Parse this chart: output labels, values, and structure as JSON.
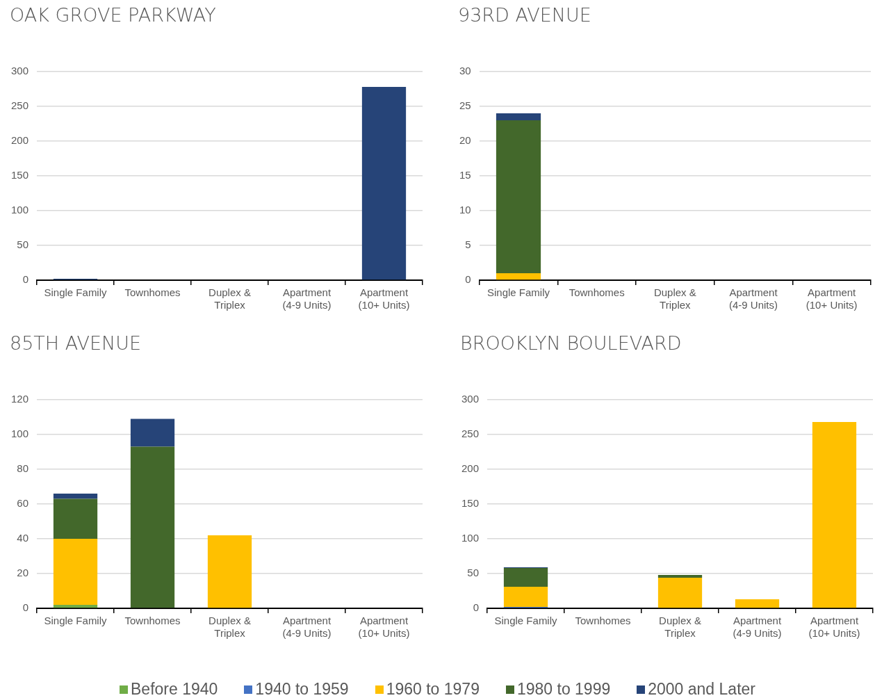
{
  "chart_data": [
    {
      "type": "bar",
      "title": "OAK GROVE PARKWAY",
      "stacked": true,
      "grid": "y",
      "legend": "bottom",
      "categories": [
        "Single Family",
        "Townhomes",
        "Duplex & Triplex",
        "Apartment (4-9 Units)",
        "Apartment (10+ Units)"
      ],
      "ylim": [
        0,
        300
      ],
      "yticks": [
        0,
        50,
        100,
        150,
        200,
        250,
        300
      ],
      "series": [
        {
          "name": "Before 1940",
          "color": "#70ad47",
          "values": [
            0,
            0,
            0,
            0,
            0
          ]
        },
        {
          "name": "1940 to 1959",
          "color": "#4472c4",
          "values": [
            0,
            0,
            0,
            0,
            0
          ]
        },
        {
          "name": "1960 to 1979",
          "color": "#ffc000",
          "values": [
            0,
            0,
            0,
            0,
            0
          ]
        },
        {
          "name": "1980 to 1999",
          "color": "#43682b",
          "values": [
            null,
            0,
            0,
            0,
            0
          ]
        },
        {
          "name": "2000 and Later",
          "color": "#264478",
          "values": [
            2,
            0,
            0,
            0,
            278
          ]
        }
      ]
    },
    {
      "type": "bar",
      "title": "93RD AVENUE",
      "stacked": true,
      "grid": "y",
      "categories": [
        "Single Family",
        "Townhomes",
        "Duplex & Triplex",
        "Apartment (4-9 Units)",
        "Apartment (10+ Units)"
      ],
      "ylim": [
        0,
        30
      ],
      "yticks": [
        0,
        5,
        10,
        15,
        20,
        25,
        30
      ],
      "series": [
        {
          "color": "#70ad47",
          "values": [
            0,
            0,
            0,
            0,
            0
          ]
        },
        {
          "color": "#4472c4",
          "values": [
            0,
            0,
            0,
            0,
            0
          ]
        },
        {
          "color": "#ffc000",
          "values": [
            1,
            0,
            0,
            0,
            0
          ]
        },
        {
          "color": "#43682b",
          "values": [
            22,
            0,
            0,
            0,
            0
          ]
        },
        {
          "color": "#264478",
          "values": [
            1,
            0,
            0,
            0,
            0
          ]
        }
      ]
    },
    {
      "type": "bar",
      "title": "85TH AVENUE",
      "stacked": true,
      "grid": "y",
      "categories": [
        "Single Family",
        "Townhomes",
        "Duplex & Triplex",
        "Apartment (4-9 Units)",
        "Apartment (10+ Units)"
      ],
      "ylim": [
        0,
        120
      ],
      "yticks": [
        0,
        20,
        40,
        60,
        80,
        100,
        120
      ],
      "series": [
        {
          "color": "#70ad47",
          "values": [
            2,
            0,
            0,
            0,
            0
          ]
        },
        {
          "color": "#4472c4",
          "values": [
            0,
            0,
            0,
            0,
            0
          ]
        },
        {
          "color": "#ffc000",
          "values": [
            38,
            0,
            42,
            0,
            0
          ]
        },
        {
          "color": "#43682b",
          "values": [
            23,
            93,
            0,
            0,
            0
          ]
        },
        {
          "color": "#264478",
          "values": [
            3,
            16,
            0,
            0,
            0
          ]
        }
      ]
    },
    {
      "type": "bar",
      "title": "BROOKLYN BOULEVARD",
      "stacked": true,
      "grid": "y",
      "categories": [
        "Single Family",
        "Townhomes",
        "Duplex & Triplex",
        "Apartment (4-9 Units)",
        "Apartment (10+ Units)"
      ],
      "ylim": [
        0,
        300
      ],
      "yticks": [
        0,
        50,
        100,
        150,
        200,
        250,
        300
      ],
      "series": [
        {
          "color": "#70ad47",
          "values": [
            0,
            0,
            0,
            0,
            0
          ]
        },
        {
          "color": "#4472c4",
          "values": [
            2,
            0,
            0,
            0,
            0
          ]
        },
        {
          "color": "#ffc000",
          "values": [
            29,
            0,
            44,
            13,
            268
          ]
        },
        {
          "color": "#43682b",
          "values": [
            27,
            0,
            4,
            0,
            0
          ]
        },
        {
          "color": "#264478",
          "values": [
            1,
            0,
            0,
            0,
            0
          ]
        }
      ]
    }
  ]
}
